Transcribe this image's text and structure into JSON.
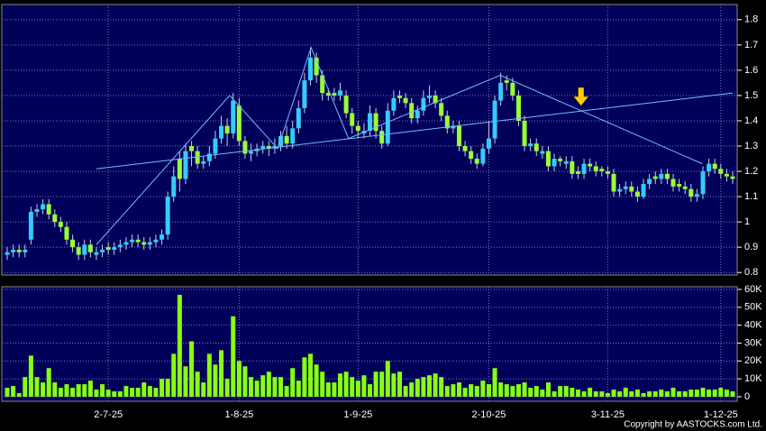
{
  "chart_data": [
    {
      "type": "candlestick",
      "categories": [
        null,
        null,
        null,
        null,
        null,
        null,
        null,
        null,
        null,
        null,
        null,
        null,
        null,
        null,
        null,
        null,
        null,
        "2-7-25",
        null,
        null,
        null,
        null,
        null,
        null,
        null,
        null,
        null,
        null,
        null,
        null,
        null,
        null,
        null,
        null,
        null,
        null,
        null,
        null,
        null,
        "1-8-25",
        null,
        null,
        null,
        null,
        null,
        null,
        null,
        null,
        null,
        null,
        null,
        null,
        null,
        null,
        null,
        null,
        null,
        null,
        null,
        "1-9-25",
        null,
        null,
        null,
        null,
        null,
        null,
        null,
        null,
        null,
        null,
        null,
        null,
        null,
        null,
        null,
        null,
        null,
        null,
        null,
        null,
        null,
        "2-10-25",
        null,
        null,
        null,
        null,
        null,
        null,
        null,
        null,
        null,
        null,
        null,
        null,
        null,
        null,
        null,
        null,
        null,
        null,
        null,
        "3-11-25",
        null,
        null,
        null,
        null,
        null,
        null,
        null,
        null,
        null,
        null,
        null,
        null,
        null,
        null,
        null,
        null,
        null,
        null,
        "1-12-25",
        null,
        null
      ],
      "open": [
        0.87,
        0.88,
        0.89,
        0.88,
        0.93,
        1.04,
        1.05,
        1.07,
        1.03,
        1.0,
        0.98,
        0.93,
        0.9,
        0.87,
        0.91,
        0.87,
        0.88,
        0.9,
        0.89,
        0.9,
        0.91,
        0.92,
        0.93,
        0.92,
        0.91,
        0.92,
        0.93,
        0.95,
        1.1,
        1.25,
        1.17,
        1.3,
        1.28,
        1.23,
        1.24,
        1.27,
        1.33,
        1.38,
        1.35,
        1.46,
        1.32,
        1.27,
        1.28,
        1.29,
        1.3,
        1.29,
        1.3,
        1.34,
        1.31,
        1.37,
        1.45,
        1.56,
        1.65,
        1.58,
        1.51,
        1.51,
        1.5,
        1.5,
        1.43,
        1.38,
        1.35,
        1.36,
        1.43,
        1.36,
        1.31,
        1.44,
        1.5,
        1.49,
        1.47,
        1.41,
        1.44,
        1.49,
        1.5,
        1.47,
        1.42,
        1.37,
        1.38,
        1.3,
        1.28,
        1.25,
        1.23,
        1.29,
        1.33,
        1.48,
        1.56,
        1.55,
        1.5,
        1.4,
        1.3,
        1.31,
        1.27,
        1.28,
        1.22,
        1.25,
        1.23,
        1.24,
        1.2,
        1.19,
        1.23,
        1.22,
        1.21,
        1.2,
        1.19,
        1.12,
        1.13,
        1.14,
        1.12,
        1.1,
        1.15,
        1.18,
        1.17,
        1.19,
        1.17,
        1.15,
        1.14,
        1.13,
        1.1,
        1.11,
        1.2,
        1.23,
        1.21,
        1.19,
        1.18
      ],
      "high": [
        0.9,
        0.91,
        0.91,
        0.91,
        1.06,
        1.07,
        1.09,
        1.09,
        1.05,
        1.02,
        1.0,
        0.95,
        0.92,
        0.93,
        0.93,
        0.9,
        0.91,
        0.92,
        0.92,
        0.93,
        0.94,
        0.95,
        0.95,
        0.94,
        0.94,
        0.95,
        0.97,
        1.12,
        1.22,
        1.28,
        1.31,
        1.32,
        1.3,
        1.26,
        1.3,
        1.36,
        1.42,
        1.41,
        1.51,
        1.49,
        1.34,
        1.31,
        1.31,
        1.32,
        1.32,
        1.33,
        1.36,
        1.38,
        1.4,
        1.48,
        1.59,
        1.69,
        1.67,
        1.6,
        1.53,
        1.53,
        1.55,
        1.52,
        1.45,
        1.4,
        1.39,
        1.46,
        1.45,
        1.38,
        1.47,
        1.52,
        1.52,
        1.51,
        1.49,
        1.46,
        1.52,
        1.54,
        1.52,
        1.49,
        1.44,
        1.4,
        1.4,
        1.32,
        1.3,
        1.27,
        1.31,
        1.4,
        1.5,
        1.59,
        1.58,
        1.57,
        1.52,
        1.42,
        1.33,
        1.33,
        1.3,
        1.3,
        1.27,
        1.26,
        1.26,
        1.26,
        1.22,
        1.25,
        1.25,
        1.24,
        1.22,
        1.22,
        1.21,
        1.15,
        1.16,
        1.16,
        1.14,
        1.17,
        1.19,
        1.2,
        1.21,
        1.21,
        1.19,
        1.17,
        1.16,
        1.15,
        1.13,
        1.22,
        1.25,
        1.25,
        1.23,
        1.21,
        1.2
      ],
      "low": [
        0.85,
        0.86,
        0.86,
        0.86,
        0.91,
        1.02,
        1.03,
        1.01,
        0.98,
        0.96,
        0.91,
        0.88,
        0.85,
        0.85,
        0.86,
        0.85,
        0.86,
        0.87,
        0.87,
        0.88,
        0.89,
        0.9,
        0.9,
        0.89,
        0.89,
        0.9,
        0.91,
        0.93,
        1.08,
        1.12,
        1.15,
        1.22,
        1.21,
        1.21,
        1.22,
        1.25,
        1.31,
        1.3,
        1.33,
        1.3,
        1.25,
        1.24,
        1.26,
        1.27,
        1.26,
        1.27,
        1.28,
        1.29,
        1.29,
        1.35,
        1.43,
        1.54,
        1.55,
        1.48,
        1.48,
        1.48,
        1.48,
        1.41,
        1.35,
        1.33,
        1.33,
        1.34,
        1.33,
        1.29,
        1.3,
        1.42,
        1.47,
        1.45,
        1.39,
        1.39,
        1.42,
        1.47,
        1.45,
        1.4,
        1.35,
        1.35,
        1.28,
        1.26,
        1.23,
        1.21,
        1.22,
        1.27,
        1.31,
        1.46,
        1.52,
        1.48,
        1.38,
        1.28,
        1.28,
        1.26,
        1.25,
        1.2,
        1.2,
        1.22,
        1.21,
        1.17,
        1.17,
        1.17,
        1.2,
        1.18,
        1.18,
        1.17,
        1.1,
        1.1,
        1.11,
        1.1,
        1.08,
        1.09,
        1.13,
        1.15,
        1.15,
        1.15,
        1.12,
        1.12,
        1.11,
        1.08,
        1.08,
        1.09,
        1.18,
        1.19,
        1.17,
        1.16,
        1.15
      ],
      "close": [
        0.88,
        0.89,
        0.88,
        0.89,
        1.04,
        1.05,
        1.07,
        1.03,
        1.0,
        0.98,
        0.93,
        0.9,
        0.87,
        0.91,
        0.88,
        0.88,
        0.89,
        0.89,
        0.9,
        0.91,
        0.92,
        0.93,
        0.92,
        0.91,
        0.92,
        0.93,
        0.95,
        1.1,
        1.18,
        1.17,
        1.28,
        1.28,
        1.23,
        1.24,
        1.27,
        1.33,
        1.38,
        1.35,
        1.48,
        1.32,
        1.27,
        1.28,
        1.29,
        1.3,
        1.29,
        1.3,
        1.34,
        1.31,
        1.37,
        1.45,
        1.56,
        1.65,
        1.58,
        1.51,
        1.5,
        1.5,
        1.52,
        1.43,
        1.38,
        1.36,
        1.36,
        1.43,
        1.36,
        1.31,
        1.44,
        1.49,
        1.49,
        1.47,
        1.41,
        1.44,
        1.49,
        1.5,
        1.47,
        1.42,
        1.37,
        1.38,
        1.3,
        1.28,
        1.25,
        1.23,
        1.29,
        1.33,
        1.48,
        1.55,
        1.55,
        1.5,
        1.4,
        1.3,
        1.31,
        1.28,
        1.28,
        1.22,
        1.25,
        1.24,
        1.24,
        1.19,
        1.19,
        1.23,
        1.22,
        1.2,
        1.2,
        1.19,
        1.12,
        1.13,
        1.14,
        1.12,
        1.1,
        1.15,
        1.17,
        1.17,
        1.19,
        1.17,
        1.14,
        1.14,
        1.13,
        1.1,
        1.11,
        1.2,
        1.23,
        1.21,
        1.19,
        1.18,
        1.17
      ],
      "up_color": "#33ccff",
      "down_color": "#99ff33",
      "ylim": [
        0.79,
        1.86
      ],
      "yticks": [
        0.8,
        0.9,
        1,
        1.1,
        1.2,
        1.3,
        1.4,
        1.5,
        1.6,
        1.7,
        1.8
      ],
      "grid": true,
      "trendlines": [
        {
          "color": "#77bbff",
          "points": [
            [
              15,
              1.21
            ],
            [
              122,
              1.51
            ]
          ]
        },
        {
          "color": "#77bbff",
          "points": [
            [
              15,
              0.91
            ],
            [
              37.4,
              1.5
            ],
            [
              45.5,
              1.29
            ],
            [
              51.1,
              1.69
            ],
            [
              57.4,
              1.33
            ],
            [
              82.9,
              1.58
            ],
            [
              116.9,
              1.23
            ]
          ]
        }
      ],
      "arrow": {
        "x": 96.5,
        "y": 1.46,
        "color": "#ffcc00"
      }
    },
    {
      "type": "bar",
      "values": [
        5000,
        6000,
        2000,
        11000,
        23000,
        11000,
        8000,
        16000,
        8000,
        5000,
        7000,
        5000,
        7000,
        7000,
        9000,
        4000,
        7000,
        4000,
        3000,
        3000,
        6000,
        5000,
        5000,
        8000,
        6000,
        5000,
        10000,
        10000,
        24000,
        57000,
        17000,
        31000,
        14000,
        8000,
        24000,
        18000,
        26000,
        10000,
        45000,
        20000,
        17000,
        11000,
        9000,
        12000,
        14000,
        11000,
        11000,
        6000,
        16000,
        9000,
        22000,
        24000,
        18000,
        14000,
        8000,
        8000,
        13000,
        14000,
        11000,
        9000,
        12000,
        7000,
        14000,
        14000,
        20000,
        13000,
        14000,
        6000,
        8000,
        10000,
        11000,
        12000,
        13000,
        11000,
        6000,
        7000,
        8000,
        5000,
        7000,
        6000,
        9000,
        7000,
        16000,
        8000,
        7000,
        6000,
        7000,
        8000,
        5000,
        6000,
        4000,
        8000,
        3000,
        6000,
        6000,
        5000,
        4000,
        3000,
        5000,
        3000,
        3000,
        2000,
        4000,
        3000,
        5000,
        3000,
        4000,
        2000,
        3000,
        3000,
        4000,
        3000,
        5000,
        3000,
        3000,
        4000,
        4000,
        5000,
        4000,
        4000,
        5000,
        4000,
        3000
      ],
      "color": "#88ff11",
      "ylim": [
        0,
        61500
      ],
      "yticks": [
        0,
        {
          "value": 10000,
          "label": "10K"
        },
        {
          "value": 20000,
          "label": "20K"
        },
        {
          "value": 30000,
          "label": "30K"
        },
        {
          "value": 40000,
          "label": "40K"
        },
        {
          "value": 50000,
          "label": "50K"
        },
        {
          "value": 60000,
          "label": "60K"
        }
      ],
      "grid": true
    }
  ],
  "footer": "Copyright by AASTOCKS.com Ltd."
}
